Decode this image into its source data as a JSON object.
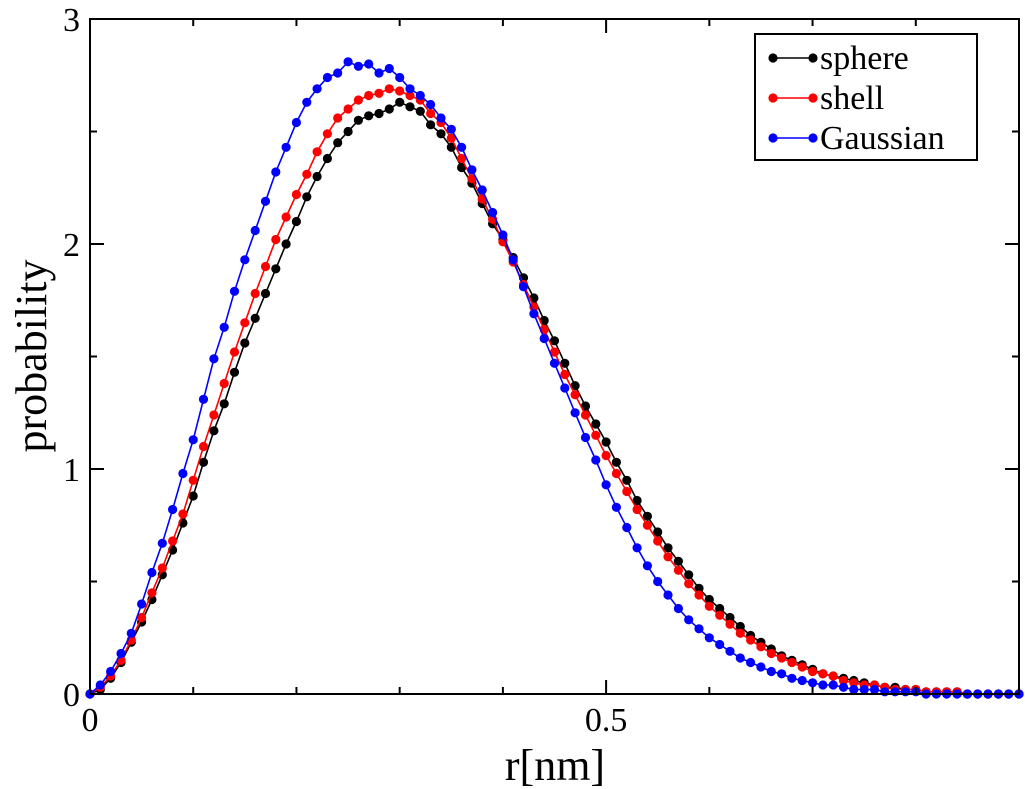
{
  "chart_data": {
    "type": "line",
    "title": "",
    "xlabel": "r[nm]",
    "ylabel": "probability",
    "xlim": [
      0,
      0.9
    ],
    "ylim": [
      0,
      3
    ],
    "x_ticks": [
      {
        "value": 0,
        "label": "0"
      },
      {
        "value": 0.5,
        "label": "0.5"
      }
    ],
    "y_ticks": [
      {
        "value": 0,
        "label": "0"
      },
      {
        "value": 1,
        "label": "1"
      },
      {
        "value": 2,
        "label": "2"
      },
      {
        "value": 3,
        "label": "3"
      }
    ],
    "legend_position": "top-right",
    "grid": false,
    "series": [
      {
        "name": "sphere",
        "color": "#000000",
        "x": [
          0,
          0.01,
          0.02,
          0.03,
          0.04,
          0.05,
          0.06,
          0.07,
          0.08,
          0.09,
          0.1,
          0.11,
          0.12,
          0.13,
          0.14,
          0.15,
          0.16,
          0.17,
          0.18,
          0.19,
          0.2,
          0.21,
          0.22,
          0.23,
          0.24,
          0.25,
          0.26,
          0.27,
          0.28,
          0.29,
          0.3,
          0.31,
          0.32,
          0.33,
          0.34,
          0.35,
          0.36,
          0.37,
          0.38,
          0.39,
          0.4,
          0.41,
          0.42,
          0.43,
          0.44,
          0.45,
          0.46,
          0.47,
          0.48,
          0.49,
          0.5,
          0.51,
          0.52,
          0.53,
          0.54,
          0.55,
          0.56,
          0.57,
          0.58,
          0.59,
          0.6,
          0.61,
          0.62,
          0.63,
          0.64,
          0.65,
          0.66,
          0.67,
          0.68,
          0.69,
          0.7,
          0.71,
          0.72,
          0.73,
          0.74,
          0.75,
          0.76,
          0.77,
          0.78,
          0.79,
          0.8,
          0.81,
          0.82,
          0.83,
          0.84,
          0.85,
          0.86,
          0.87,
          0.88,
          0.89,
          0.9
        ],
        "y": [
          0,
          0.02,
          0.07,
          0.14,
          0.23,
          0.32,
          0.42,
          0.53,
          0.64,
          0.76,
          0.88,
          1.03,
          1.17,
          1.29,
          1.43,
          1.56,
          1.67,
          1.78,
          1.89,
          2.0,
          2.1,
          2.21,
          2.3,
          2.38,
          2.45,
          2.5,
          2.55,
          2.57,
          2.58,
          2.6,
          2.63,
          2.61,
          2.59,
          2.53,
          2.49,
          2.43,
          2.34,
          2.27,
          2.18,
          2.09,
          2.02,
          1.94,
          1.85,
          1.76,
          1.66,
          1.57,
          1.47,
          1.37,
          1.28,
          1.2,
          1.12,
          1.03,
          0.95,
          0.86,
          0.79,
          0.72,
          0.65,
          0.59,
          0.53,
          0.47,
          0.42,
          0.38,
          0.34,
          0.3,
          0.26,
          0.23,
          0.2,
          0.17,
          0.15,
          0.13,
          0.11,
          0.09,
          0.08,
          0.07,
          0.06,
          0.05,
          0.04,
          0.03,
          0.03,
          0.02,
          0.02,
          0.01,
          0.01,
          0.01,
          0.01,
          0.0,
          0.0,
          0.0,
          0.0,
          0.0,
          0.0
        ]
      },
      {
        "name": "shell",
        "color": "#ff0000",
        "x": [
          0,
          0.01,
          0.02,
          0.03,
          0.04,
          0.05,
          0.06,
          0.07,
          0.08,
          0.09,
          0.1,
          0.11,
          0.12,
          0.13,
          0.14,
          0.15,
          0.16,
          0.17,
          0.18,
          0.19,
          0.2,
          0.21,
          0.22,
          0.23,
          0.24,
          0.25,
          0.26,
          0.27,
          0.28,
          0.29,
          0.3,
          0.31,
          0.32,
          0.33,
          0.34,
          0.35,
          0.36,
          0.37,
          0.38,
          0.39,
          0.4,
          0.41,
          0.42,
          0.43,
          0.44,
          0.45,
          0.46,
          0.47,
          0.48,
          0.49,
          0.5,
          0.51,
          0.52,
          0.53,
          0.54,
          0.55,
          0.56,
          0.57,
          0.58,
          0.59,
          0.6,
          0.61,
          0.62,
          0.63,
          0.64,
          0.65,
          0.66,
          0.67,
          0.68,
          0.69,
          0.7,
          0.71,
          0.72,
          0.73,
          0.74,
          0.75,
          0.76,
          0.77,
          0.78,
          0.79,
          0.8,
          0.81,
          0.82,
          0.83,
          0.84,
          0.85,
          0.86,
          0.87,
          0.88,
          0.89,
          0.9
        ],
        "y": [
          0,
          0.03,
          0.08,
          0.15,
          0.24,
          0.34,
          0.45,
          0.56,
          0.68,
          0.8,
          0.95,
          1.1,
          1.24,
          1.38,
          1.52,
          1.65,
          1.78,
          1.9,
          2.02,
          2.12,
          2.22,
          2.31,
          2.41,
          2.49,
          2.56,
          2.6,
          2.64,
          2.66,
          2.67,
          2.69,
          2.68,
          2.66,
          2.64,
          2.58,
          2.54,
          2.47,
          2.38,
          2.29,
          2.2,
          2.11,
          2.01,
          1.92,
          1.82,
          1.72,
          1.62,
          1.52,
          1.42,
          1.33,
          1.24,
          1.15,
          1.06,
          0.98,
          0.9,
          0.82,
          0.75,
          0.68,
          0.61,
          0.55,
          0.49,
          0.44,
          0.39,
          0.35,
          0.31,
          0.27,
          0.24,
          0.21,
          0.18,
          0.16,
          0.14,
          0.12,
          0.1,
          0.09,
          0.08,
          0.06,
          0.05,
          0.04,
          0.04,
          0.03,
          0.02,
          0.02,
          0.02,
          0.01,
          0.01,
          0.01,
          0.01,
          0.0,
          0.0,
          0.0,
          0.0,
          0.0,
          0.0
        ]
      },
      {
        "name": "Gaussian",
        "color": "#0000ff",
        "x": [
          0,
          0.01,
          0.02,
          0.03,
          0.04,
          0.05,
          0.06,
          0.07,
          0.08,
          0.09,
          0.1,
          0.11,
          0.12,
          0.13,
          0.14,
          0.15,
          0.16,
          0.17,
          0.18,
          0.19,
          0.2,
          0.21,
          0.22,
          0.23,
          0.24,
          0.25,
          0.26,
          0.27,
          0.28,
          0.29,
          0.3,
          0.31,
          0.32,
          0.33,
          0.34,
          0.35,
          0.36,
          0.37,
          0.38,
          0.39,
          0.4,
          0.41,
          0.42,
          0.43,
          0.44,
          0.45,
          0.46,
          0.47,
          0.48,
          0.49,
          0.5,
          0.51,
          0.52,
          0.53,
          0.54,
          0.55,
          0.56,
          0.57,
          0.58,
          0.59,
          0.6,
          0.61,
          0.62,
          0.63,
          0.64,
          0.65,
          0.66,
          0.67,
          0.68,
          0.69,
          0.7,
          0.71,
          0.72,
          0.73,
          0.74,
          0.75,
          0.76,
          0.77,
          0.78,
          0.79,
          0.8,
          0.81,
          0.82,
          0.83,
          0.84,
          0.85,
          0.86,
          0.87,
          0.88,
          0.89,
          0.9
        ],
        "y": [
          0,
          0.04,
          0.1,
          0.18,
          0.27,
          0.4,
          0.54,
          0.67,
          0.82,
          0.98,
          1.13,
          1.31,
          1.49,
          1.63,
          1.79,
          1.93,
          2.06,
          2.19,
          2.32,
          2.43,
          2.54,
          2.63,
          2.69,
          2.74,
          2.76,
          2.81,
          2.79,
          2.8,
          2.76,
          2.78,
          2.74,
          2.69,
          2.66,
          2.62,
          2.56,
          2.51,
          2.43,
          2.33,
          2.24,
          2.14,
          2.04,
          1.93,
          1.81,
          1.69,
          1.58,
          1.47,
          1.36,
          1.25,
          1.14,
          1.04,
          0.93,
          0.83,
          0.74,
          0.65,
          0.57,
          0.5,
          0.44,
          0.38,
          0.33,
          0.29,
          0.25,
          0.22,
          0.19,
          0.16,
          0.14,
          0.12,
          0.1,
          0.09,
          0.07,
          0.06,
          0.05,
          0.04,
          0.04,
          0.03,
          0.02,
          0.02,
          0.02,
          0.01,
          0.01,
          0.01,
          0.01,
          0.0,
          0.0,
          0.0,
          0.0,
          0.0,
          0.0,
          0.0,
          0.0,
          0.0,
          0.0
        ]
      }
    ]
  }
}
